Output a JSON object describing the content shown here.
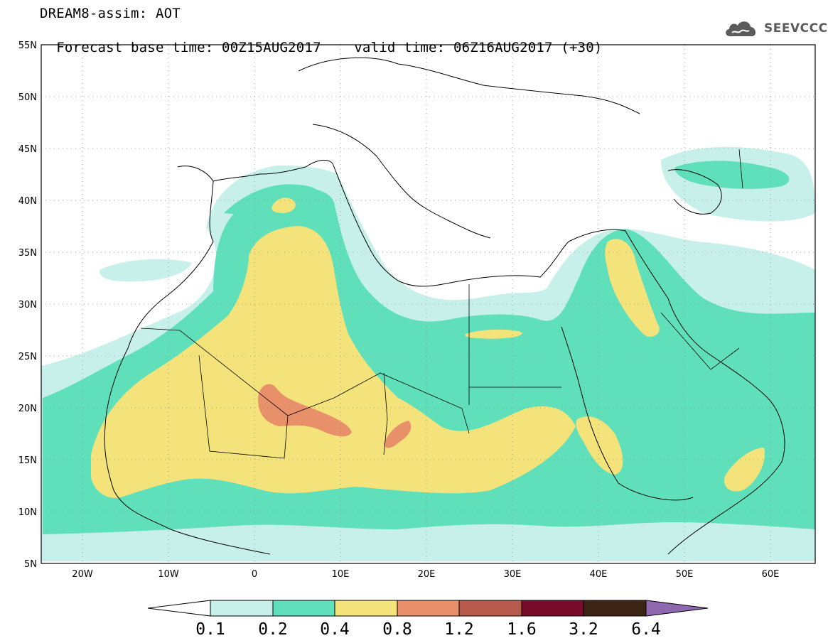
{
  "header": {
    "title": "DREAM8-assim: AOT",
    "forecast_base_time_label": "Forecast base time: 00Z15AUG2017",
    "valid_time_label": "valid time: 06Z16AUG2017 (+30)"
  },
  "logo": {
    "text": "SEEVCCC",
    "icon": "cloud-icon"
  },
  "map": {
    "lat_labels": [
      "55N",
      "50N",
      "45N",
      "40N",
      "35N",
      "30N",
      "25N",
      "20N",
      "15N",
      "10N",
      "5N"
    ],
    "lon_labels": [
      "20W",
      "10W",
      "0",
      "10E",
      "20E",
      "30E",
      "40E",
      "50E",
      "60E"
    ],
    "lat_range": [
      5,
      55
    ],
    "lon_range": [
      -25,
      65
    ]
  },
  "colorbar": {
    "thresholds": [
      "0.1",
      "0.2",
      "0.4",
      "0.8",
      "1.2",
      "1.6",
      "3.2",
      "6.4"
    ],
    "colors": {
      "low": "#c6f0e9",
      "c1": "#5fe0bb",
      "c2": "#f3e37a",
      "c3": "#e8906a",
      "c4": "#b75c4d",
      "c5": "#7a0c2b",
      "c6": "#3b2414",
      "high": "#9068b0"
    }
  }
}
